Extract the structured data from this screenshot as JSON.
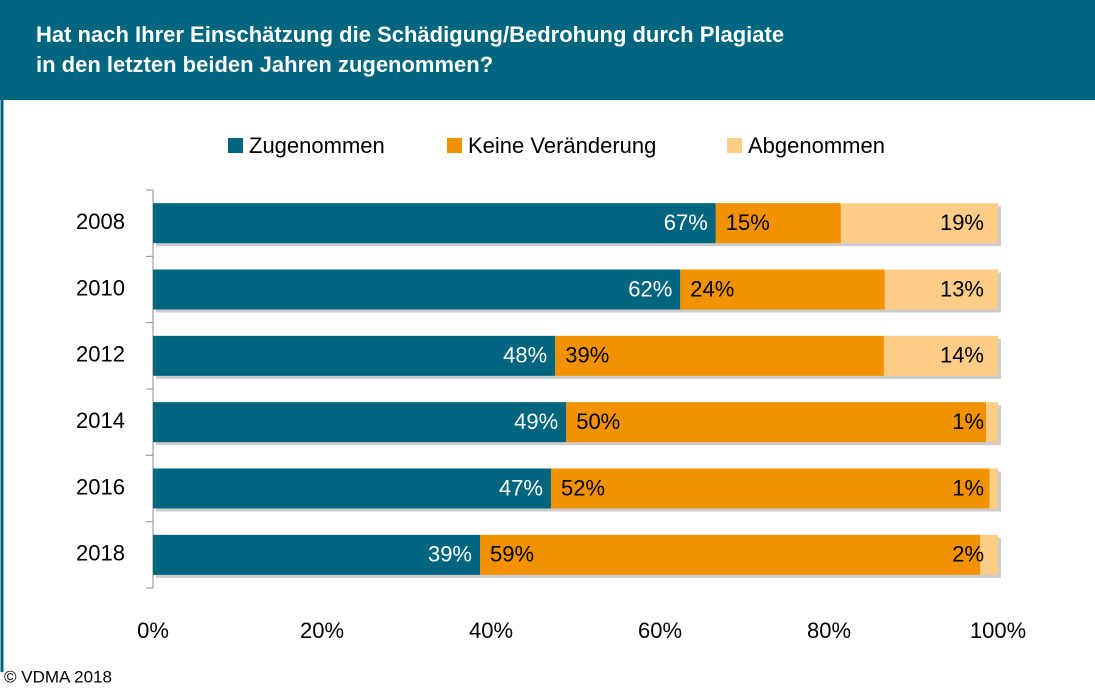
{
  "chart_data": {
    "type": "stacked_barh",
    "title": "Hat nach Ihrer Einschätzung die Schädigung/Bedrohung durch Plagiate\nin den letzten beiden Jahren zugenommen?",
    "categories": [
      "2008",
      "2010",
      "2012",
      "2014",
      "2016",
      "2018"
    ],
    "series": [
      {
        "name": "Zugenommen",
        "color": "#00657f",
        "values": [
          66.6,
          62.4,
          47.6,
          48.9,
          47.1,
          38.7
        ],
        "value_labels": [
          "67%",
          "62%",
          "48%",
          "49%",
          "47%",
          "39%"
        ]
      },
      {
        "name": "Keine Veränderung",
        "color": "#f39200",
        "values": [
          14.8,
          24.2,
          38.9,
          49.7,
          51.9,
          59.2
        ],
        "value_labels": [
          "15%",
          "24%",
          "39%",
          "50%",
          "52%",
          "59%"
        ]
      },
      {
        "name": "Abgenommen",
        "color": "#fdcd88",
        "values": [
          18.6,
          13.4,
          13.5,
          1.4,
          1.0,
          2.1
        ],
        "value_labels": [
          "19%",
          "13%",
          "14%",
          "1%",
          "1%",
          "2%"
        ]
      }
    ],
    "xlim": [
      0,
      100
    ],
    "xticks": [
      {
        "value": 0,
        "label": "0%"
      },
      {
        "value": 20,
        "label": "20%"
      },
      {
        "value": 40,
        "label": "40%"
      },
      {
        "value": 60,
        "label": "60%"
      },
      {
        "value": 80,
        "label": "80%"
      },
      {
        "value": 100,
        "label": "100%"
      }
    ],
    "legend": "top",
    "footer": "© VDMA 2018"
  }
}
